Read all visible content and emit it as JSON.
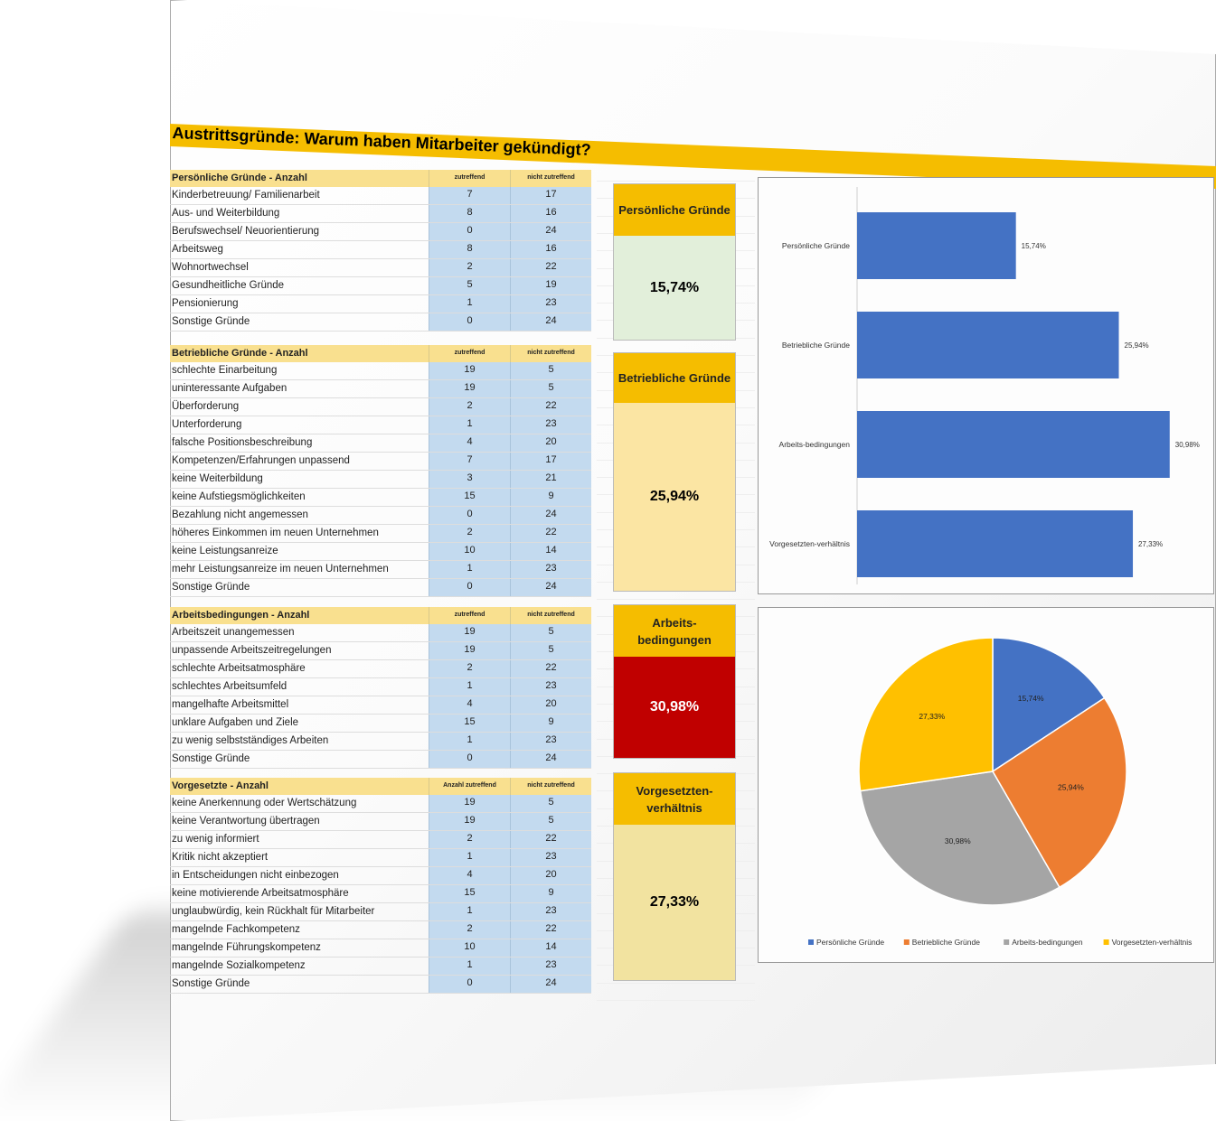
{
  "title": "Austrittsgründe: Warum haben Mitarbeiter gekündigt?",
  "sections": [
    {
      "header": "Persönliche Gründe - Anzahl",
      "col1": "zutreffend",
      "col2": "nicht zutreffend",
      "rows": [
        {
          "label": "Kinderbetreuung/ Familienarbeit",
          "a": "7",
          "b": "17"
        },
        {
          "label": "Aus- und Weiterbildung",
          "a": "8",
          "b": "16"
        },
        {
          "label": "Berufswechsel/ Neuorientierung",
          "a": "0",
          "b": "24"
        },
        {
          "label": "Arbeitsweg",
          "a": "8",
          "b": "16"
        },
        {
          "label": "Wohnortwechsel",
          "a": "2",
          "b": "22"
        },
        {
          "label": "Gesundheitliche Gründe",
          "a": "5",
          "b": "19"
        },
        {
          "label": "Pensionierung",
          "a": "1",
          "b": "23"
        },
        {
          "label": "Sonstige Gründe",
          "a": "0",
          "b": "24"
        }
      ],
      "card_title": "Persönliche Gründe",
      "card_value": "15,74%"
    },
    {
      "header": "Betriebliche Gründe - Anzahl",
      "col1": "zutreffend",
      "col2": "nicht zutreffend",
      "rows": [
        {
          "label": "schlechte Einarbeitung",
          "a": "19",
          "b": "5"
        },
        {
          "label": "uninteressante Aufgaben",
          "a": "19",
          "b": "5"
        },
        {
          "label": "Überforderung",
          "a": "2",
          "b": "22"
        },
        {
          "label": "Unterforderung",
          "a": "1",
          "b": "23"
        },
        {
          "label": "falsche Positionsbeschreibung",
          "a": "4",
          "b": "20"
        },
        {
          "label": "Kompetenzen/Erfahrungen unpassend",
          "a": "7",
          "b": "17"
        },
        {
          "label": "keine Weiterbildung",
          "a": "3",
          "b": "21"
        },
        {
          "label": "keine Aufstiegsmöglichkeiten",
          "a": "15",
          "b": "9"
        },
        {
          "label": "Bezahlung nicht angemessen",
          "a": "0",
          "b": "24"
        },
        {
          "label": "höheres Einkommen im neuen Unternehmen",
          "a": "2",
          "b": "22"
        },
        {
          "label": "keine Leistungsanreize",
          "a": "10",
          "b": "14"
        },
        {
          "label": "mehr Leistungsanreize im neuen Unternehmen",
          "a": "1",
          "b": "23"
        },
        {
          "label": "Sonstige Gründe",
          "a": "0",
          "b": "24"
        }
      ],
      "card_title": "Betriebliche Gründe",
      "card_value": "25,94%"
    },
    {
      "header": "Arbeitsbedingungen - Anzahl",
      "col1": "zutreffend",
      "col2": "nicht zutreffend",
      "rows": [
        {
          "label": "Arbeitszeit unangemessen",
          "a": "19",
          "b": "5"
        },
        {
          "label": "unpassende Arbeitszeitregelungen",
          "a": "19",
          "b": "5"
        },
        {
          "label": "schlechte Arbeitsatmosphäre",
          "a": "2",
          "b": "22"
        },
        {
          "label": "schlechtes Arbeitsumfeld",
          "a": "1",
          "b": "23"
        },
        {
          "label": "mangelhafte Arbeitsmittel",
          "a": "4",
          "b": "20"
        },
        {
          "label": "unklare Aufgaben und Ziele",
          "a": "15",
          "b": "9"
        },
        {
          "label": "zu wenig selbstständiges Arbeiten",
          "a": "1",
          "b": "23"
        },
        {
          "label": "Sonstige Gründe",
          "a": "0",
          "b": "24"
        }
      ],
      "card_title": "Arbeits-\nbedingungen",
      "card_value": "30,98%"
    },
    {
      "header": "Vorgesetzte - Anzahl",
      "col1": "Anzahl zutreffend",
      "col2": "nicht zutreffend",
      "rows": [
        {
          "label": "keine Anerkennung oder Wertschätzung",
          "a": "19",
          "b": "5"
        },
        {
          "label": "keine Verantwortung übertragen",
          "a": "19",
          "b": "5"
        },
        {
          "label": "zu wenig informiert",
          "a": "2",
          "b": "22"
        },
        {
          "label": "Kritik nicht akzeptiert",
          "a": "1",
          "b": "23"
        },
        {
          "label": "in Entscheidungen nicht einbezogen",
          "a": "4",
          "b": "20"
        },
        {
          "label": "keine motivierende Arbeitsatmosphäre",
          "a": "15",
          "b": "9"
        },
        {
          "label": "unglaubwürdig, kein Rückhalt für Mitarbeiter",
          "a": "1",
          "b": "23"
        },
        {
          "label": "mangelnde Fachkompetenz",
          "a": "2",
          "b": "22"
        },
        {
          "label": "mangelnde Führungskompetenz",
          "a": "10",
          "b": "14"
        },
        {
          "label": "mangelnde Sozialkompetenz",
          "a": "1",
          "b": "23"
        },
        {
          "label": "Sonstige Gründe",
          "a": "0",
          "b": "24"
        }
      ],
      "card_title": "Vorgesetzten-\nverhältnis",
      "card_value": "27,33%"
    }
  ],
  "colors": {
    "banner": "#f5bd00",
    "card_bg": [
      "#e2efda",
      "#fbe5a3",
      "#c00000",
      "#f2e3a0"
    ],
    "bar": "#4472c4",
    "pie": [
      "#4472c4",
      "#ed7d31",
      "#a5a5a5",
      "#ffc000"
    ]
  },
  "chart_data": [
    {
      "type": "bar",
      "orientation": "horizontal",
      "categories": [
        "Persönliche Gründe",
        "Betriebliche Gründe",
        "Arbeits-bedingungen",
        "Vorgesetzten-verhältnis"
      ],
      "values": [
        15.74,
        25.94,
        30.98,
        27.33
      ],
      "data_labels": [
        "15,74%",
        "25,94%",
        "30,98%",
        "27,33%"
      ],
      "title": "",
      "xlabel": "",
      "ylabel": "",
      "xlim": [
        0,
        31
      ],
      "grid": false,
      "legend": "none"
    },
    {
      "type": "pie",
      "categories": [
        "Persönliche Gründe",
        "Betriebliche Gründe",
        "Arbeits-bedingungen",
        "Vorgesetzten-verhältnis"
      ],
      "values": [
        15.74,
        25.94,
        30.98,
        27.33
      ],
      "data_labels": [
        "15,74%",
        "25,94%",
        "30,98%",
        "27,33%"
      ],
      "title": "",
      "legend": "bottom"
    }
  ]
}
